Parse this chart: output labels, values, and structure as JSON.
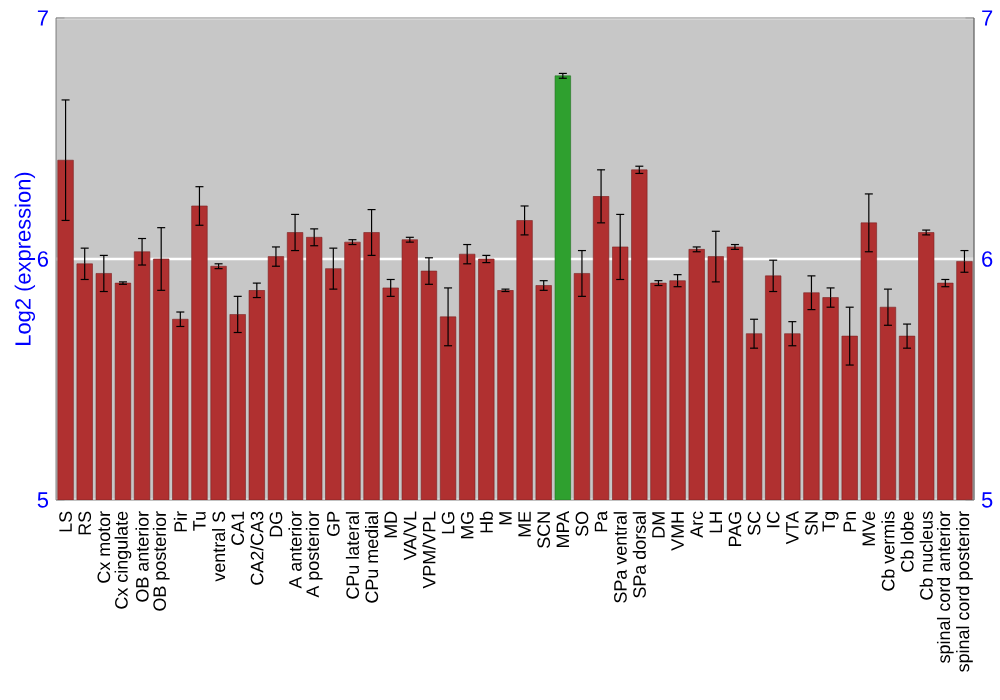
{
  "chart_data": {
    "type": "bar",
    "ylabel": "Log2 (expression)",
    "categories": [
      "LS",
      "RS",
      "Cx motor",
      "Cx cingulate",
      "OB anterior",
      "OB posterior",
      "Pir",
      "Tu",
      "ventral S",
      "CA1",
      "CA2/CA3",
      "DG",
      "A anterior",
      "A posterior",
      "GP",
      "CPu lateral",
      "CPu medial",
      "MD",
      "VA/VL",
      "VPM/VPL",
      "LG",
      "MG",
      "Hb",
      "M",
      "ME",
      "SCN",
      "MPA",
      "SO",
      "Pa",
      "SPa ventral",
      "SPa dorsal",
      "DM",
      "VMH",
      "Arc",
      "LH",
      "PAG",
      "SC",
      "IC",
      "VTA",
      "SN",
      "Tg",
      "Pn",
      "MVe",
      "Cb vermis",
      "Cb lobe",
      "Cb nucleus",
      "spinal cord anterior",
      "spinal cord posterior"
    ],
    "values": [
      6.41,
      5.98,
      5.94,
      5.9,
      6.03,
      6.0,
      5.75,
      6.22,
      5.97,
      5.77,
      5.87,
      6.01,
      6.11,
      6.09,
      5.96,
      6.07,
      6.11,
      5.88,
      6.08,
      5.95,
      5.76,
      6.02,
      6.0,
      5.87,
      6.16,
      5.89,
      6.76,
      5.94,
      6.26,
      6.05,
      6.37,
      5.9,
      5.91,
      6.04,
      6.01,
      6.05,
      5.69,
      5.93,
      5.69,
      5.86,
      5.84,
      5.68,
      6.15,
      5.8,
      5.68,
      6.11,
      5.9,
      5.99
    ],
    "errors": [
      0.25,
      0.065,
      0.075,
      0.005,
      0.055,
      0.13,
      0.03,
      0.08,
      0.01,
      0.075,
      0.03,
      0.04,
      0.075,
      0.035,
      0.085,
      0.01,
      0.095,
      0.035,
      0.01,
      0.055,
      0.12,
      0.04,
      0.015,
      0.005,
      0.06,
      0.02,
      0.01,
      0.095,
      0.11,
      0.135,
      0.015,
      0.01,
      0.025,
      0.01,
      0.105,
      0.01,
      0.06,
      0.065,
      0.05,
      0.07,
      0.04,
      0.12,
      0.12,
      0.075,
      0.05,
      0.01,
      0.015,
      0.045
    ],
    "colors": [
      "#b03030",
      "#b03030",
      "#b03030",
      "#b03030",
      "#b03030",
      "#b03030",
      "#b03030",
      "#b03030",
      "#b03030",
      "#b03030",
      "#b03030",
      "#b03030",
      "#b03030",
      "#b03030",
      "#b03030",
      "#b03030",
      "#b03030",
      "#b03030",
      "#b03030",
      "#b03030",
      "#b03030",
      "#b03030",
      "#b03030",
      "#b03030",
      "#b03030",
      "#b03030",
      "#2fa02f",
      "#b03030",
      "#b03030",
      "#b03030",
      "#b03030",
      "#b03030",
      "#b03030",
      "#b03030",
      "#b03030",
      "#b03030",
      "#b03030",
      "#b03030",
      "#b03030",
      "#b03030",
      "#b03030",
      "#b03030",
      "#b03030",
      "#b03030",
      "#b03030",
      "#b03030",
      "#b03030",
      "#b03030"
    ],
    "ylim": [
      5,
      7
    ],
    "yticks": [
      5,
      6,
      7
    ],
    "y2lim": [
      5,
      7
    ],
    "y2ticks": [
      5,
      6,
      7
    ],
    "grid": "y"
  }
}
